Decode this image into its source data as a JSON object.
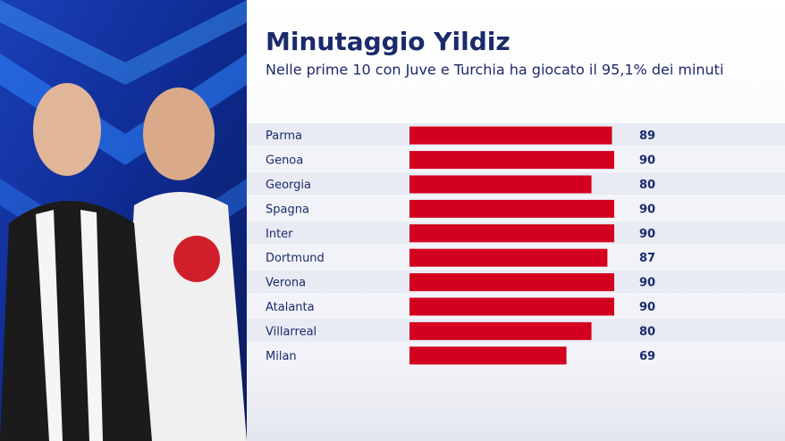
{
  "chart_data": {
    "type": "bar",
    "orientation": "horizontal",
    "title": "Minutaggio Yildiz",
    "subtitle": "Nelle prime 10 con Juve e Turchia ha giocato il 95,1% dei minuti",
    "categories": [
      "Parma",
      "Genoa",
      "Georgia",
      "Spagna",
      "Inter",
      "Dortmund",
      "Verona",
      "Atalanta",
      "Villarreal",
      "Milan"
    ],
    "values": [
      89,
      90,
      80,
      90,
      90,
      87,
      90,
      90,
      80,
      69
    ],
    "color": "#d3001f"
  }
}
